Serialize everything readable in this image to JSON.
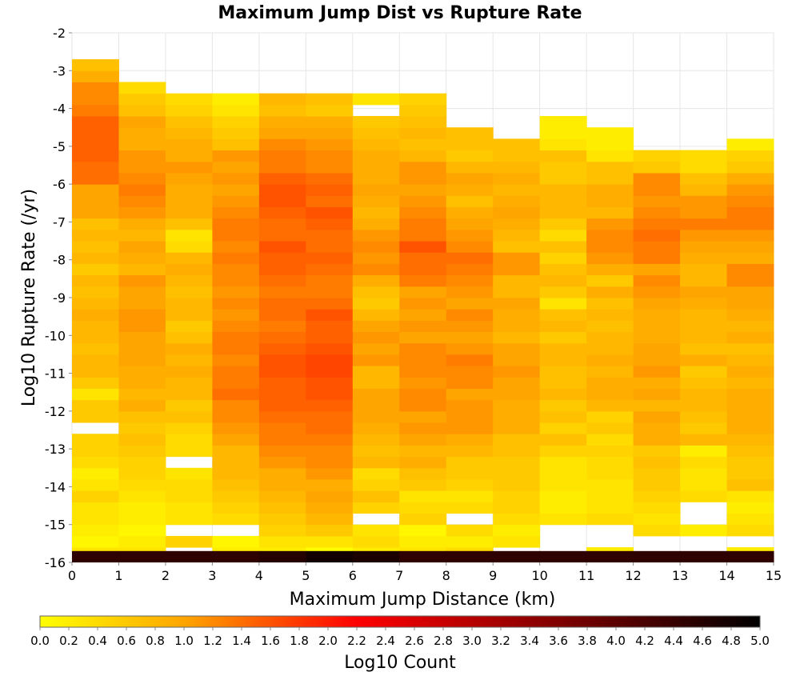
{
  "chart_data": {
    "type": "heatmap",
    "title": "Maximum Jump Dist vs Rupture Rate",
    "xlabel": "Maximum Jump Distance (km)",
    "ylabel": "Log10 Rupture Rate (/yr)",
    "xlim": [
      0,
      15
    ],
    "ylim": [
      -16,
      -2
    ],
    "x_ticks": [
      "0",
      "1",
      "2",
      "3",
      "4",
      "5",
      "6",
      "7",
      "8",
      "9",
      "10",
      "11",
      "12",
      "13",
      "14",
      "15"
    ],
    "y_ticks": [
      "-2",
      "-3",
      "-4",
      "-5",
      "-6",
      "-7",
      "-8",
      "-9",
      "-10",
      "-11",
      "-12",
      "-13",
      "-14",
      "-15",
      "-16"
    ],
    "x_bin_width": 1,
    "y_bin_width": 0.3,
    "y_bin_start": -15.9,
    "colorbar": {
      "label": "Log10 Count",
      "range": [
        0,
        5
      ],
      "ticks": [
        "0.0",
        "0.2",
        "0.4",
        "0.6",
        "0.8",
        "1.0",
        "1.2",
        "1.4",
        "1.6",
        "1.8",
        "2.0",
        "2.2",
        "2.4",
        "2.6",
        "2.8",
        "3.0",
        "3.2",
        "3.4",
        "3.6",
        "3.8",
        "4.0",
        "4.2",
        "4.4",
        "4.6",
        "4.8",
        "5.0"
      ],
      "colors": [
        "#ffff00",
        "#ffa500",
        "#ff0000",
        "#000000"
      ]
    },
    "grid": true,
    "columns": [
      [
        0.3,
        0.1,
        0.2,
        0.3,
        0.3,
        0.5,
        0.3,
        0.2,
        0.4,
        0.5,
        0.5,
        null,
        0.6,
        0.6,
        0.3,
        0.6,
        0.8,
        0.8,
        0.7,
        0.8,
        0.8,
        0.9,
        0.8,
        0.7,
        0.8,
        0.6,
        0.8,
        0.7,
        0.8,
        0.7,
        1.0,
        1.0,
        1.0,
        1.4,
        1.4,
        1.5,
        1.5,
        1.5,
        1.5,
        1.3,
        1.2,
        1.2,
        0.9,
        0.7
      ],
      [
        0.3,
        0.2,
        0.1,
        0.2,
        0.2,
        0.3,
        0.4,
        0.5,
        0.5,
        0.6,
        0.7,
        0.6,
        0.7,
        0.9,
        0.8,
        0.9,
        0.9,
        1.0,
        1.0,
        1.0,
        1.1,
        1.1,
        1.0,
        1.0,
        1.1,
        0.8,
        0.9,
        1.0,
        0.8,
        0.9,
        1.1,
        1.2,
        1.3,
        1.2,
        1.1,
        1.1,
        0.9,
        0.9,
        1.0,
        0.7,
        0.6,
        0.4
      ],
      [
        null,
        0.5,
        null,
        0.3,
        0.3,
        0.4,
        0.4,
        0.3,
        null,
        0.4,
        0.4,
        0.5,
        0.7,
        0.6,
        0.8,
        0.8,
        0.9,
        0.8,
        0.9,
        0.7,
        0.6,
        0.8,
        0.8,
        0.7,
        0.8,
        0.9,
        0.8,
        0.4,
        0.3,
        0.7,
        0.9,
        0.9,
        0.9,
        1.0,
        1.1,
        0.9,
        0.9,
        0.8,
        0.7,
        0.5,
        0.4
      ],
      [
        0.2,
        0.1,
        null,
        0.4,
        0.5,
        0.6,
        0.7,
        0.8,
        0.8,
        0.8,
        1.0,
        1.1,
        1.2,
        1.2,
        1.4,
        1.3,
        1.3,
        1.2,
        1.3,
        1.3,
        1.2,
        1.1,
        1.2,
        1.1,
        1.2,
        1.2,
        1.3,
        1.2,
        1.3,
        1.3,
        1.2,
        1.1,
        1.0,
        1.1,
        1.0,
        1.1,
        0.7,
        0.6,
        0.5,
        0.3,
        0.2
      ],
      [
        0.2,
        0.3,
        0.5,
        0.6,
        0.7,
        0.8,
        0.9,
        0.9,
        1.1,
        1.2,
        1.3,
        1.3,
        1.4,
        1.5,
        1.5,
        1.5,
        1.6,
        1.6,
        1.5,
        1.4,
        1.3,
        1.4,
        1.4,
        1.3,
        1.4,
        1.5,
        1.5,
        1.6,
        1.4,
        1.4,
        1.5,
        1.6,
        1.6,
        1.5,
        1.3,
        1.3,
        1.2,
        1.0,
        0.9,
        0.7,
        0.8
      ],
      [
        0.0,
        0.3,
        0.6,
        0.8,
        0.9,
        1.0,
        0.9,
        1.1,
        1.2,
        1.2,
        1.3,
        1.4,
        1.4,
        1.5,
        1.6,
        1.6,
        1.7,
        1.7,
        1.6,
        1.5,
        1.5,
        1.6,
        1.4,
        1.3,
        1.3,
        1.4,
        1.5,
        1.4,
        1.4,
        1.5,
        1.6,
        1.4,
        1.5,
        1.4,
        1.2,
        1.2,
        1.1,
        1.0,
        0.9,
        0.6,
        0.7
      ],
      [
        0.2,
        0.4,
        0.3,
        null,
        0.5,
        0.7,
        0.5,
        0.4,
        0.8,
        0.7,
        0.8,
        0.9,
        1.0,
        1.0,
        1.0,
        0.8,
        0.8,
        1.1,
        1.0,
        1.1,
        1.0,
        0.8,
        0.6,
        0.7,
        0.9,
        1.2,
        1.1,
        1.2,
        1.1,
        0.9,
        0.8,
        0.9,
        1.0,
        0.9,
        0.9,
        0.9,
        0.8,
        0.7,
        0.6,
        null,
        0.3
      ],
      [
        0.3,
        0.2,
        0.1,
        0.5,
        0.4,
        0.3,
        0.6,
        0.7,
        0.9,
        0.8,
        1.0,
        1.1,
        1.0,
        1.2,
        1.2,
        1.1,
        1.2,
        1.2,
        1.2,
        1.0,
        1.1,
        1.0,
        1.1,
        1.0,
        1.3,
        1.4,
        1.4,
        1.6,
        1.3,
        1.3,
        1.2,
        1.1,
        1.0,
        1.1,
        1.1,
        0.8,
        0.7,
        0.8,
        0.7,
        0.6,
        0.5
      ],
      [
        0.4,
        0.2,
        0.4,
        null,
        0.4,
        0.3,
        0.5,
        0.6,
        0.6,
        0.8,
        0.9,
        1.1,
        1.1,
        1.1,
        1.0,
        1.2,
        1.2,
        1.3,
        1.1,
        1.0,
        1.1,
        1.2,
        1.0,
        1.1,
        1.2,
        1.3,
        1.4,
        1.2,
        1.1,
        1.0,
        0.9,
        0.7,
        0.9,
        1.0,
        0.8,
        0.6,
        0.7,
        0.7
      ],
      [
        null,
        0.3,
        0.2,
        0.4,
        0.5,
        0.5,
        0.6,
        0.6,
        0.6,
        0.7,
        0.7,
        0.9,
        0.9,
        0.9,
        1.0,
        1.0,
        1.1,
        1.0,
        1.0,
        0.8,
        0.9,
        0.9,
        1.0,
        0.8,
        0.8,
        1.1,
        1.1,
        0.7,
        0.8,
        0.9,
        1.0,
        0.9,
        0.8,
        0.9,
        0.8,
        0.7,
        0.7
      ],
      [
        null,
        null,
        null,
        0.3,
        0.2,
        0.2,
        0.3,
        0.3,
        0.3,
        0.5,
        0.7,
        0.5,
        0.7,
        0.6,
        0.8,
        0.7,
        0.7,
        0.8,
        0.8,
        0.6,
        0.8,
        0.7,
        0.3,
        0.6,
        0.8,
        0.7,
        0.5,
        0.7,
        0.4,
        0.6,
        0.8,
        0.8,
        0.8,
        0.6,
        0.6,
        0.7,
        0.3,
        0.2,
        0.2
      ],
      [
        0.2,
        null,
        null,
        0.4,
        0.3,
        0.3,
        0.3,
        0.4,
        0.4,
        0.5,
        0.4,
        0.6,
        0.5,
        0.8,
        0.9,
        0.9,
        0.8,
        0.9,
        0.8,
        0.8,
        0.7,
        0.8,
        0.7,
        0.9,
        0.6,
        0.9,
        1.1,
        1.2,
        1.2,
        1.1,
        0.8,
        0.9,
        0.9,
        0.7,
        0.7,
        0.3,
        0.2,
        0.2
      ],
      [
        null,
        null,
        0.4,
        0.3,
        0.4,
        0.5,
        0.6,
        0.6,
        0.7,
        0.6,
        0.9,
        0.9,
        1.0,
        0.8,
        1.0,
        0.9,
        1.1,
        1.0,
        1.0,
        0.9,
        0.9,
        0.9,
        1.0,
        1.1,
        1.2,
        1.0,
        1.3,
        1.3,
        1.4,
        1.3,
        1.2,
        1.1,
        1.2,
        1.2,
        0.6,
        0.5
      ],
      [
        null,
        null,
        0.2,
        null,
        null,
        0.4,
        0.3,
        0.3,
        0.4,
        0.2,
        0.8,
        0.6,
        0.7,
        0.8,
        0.8,
        0.7,
        0.6,
        0.9,
        0.7,
        0.8,
        0.8,
        0.8,
        0.9,
        1.0,
        0.8,
        0.8,
        0.9,
        1.0,
        1.1,
        1.3,
        1.1,
        1.1,
        0.8,
        0.7,
        0.4,
        0.4
      ],
      [
        0.2,
        null,
        0.4,
        0.3,
        0.2,
        0.3,
        0.7,
        0.6,
        0.6,
        0.7,
        0.8,
        0.9,
        0.9,
        0.9,
        0.9,
        0.8,
        0.9,
        0.8,
        0.7,
        0.9,
        0.8,
        0.9,
        1.0,
        1.0,
        1.2,
        1.2,
        0.9,
        1.0,
        1.1,
        1.3,
        1.3,
        1.2,
        1.1,
        0.9,
        0.6,
        0.5,
        0.2
      ]
    ],
    "bottom_row": [
      4.5,
      4.5,
      4.5,
      4.5,
      4.6,
      4.8,
      4.7,
      4.5,
      4.5,
      4.5,
      4.5,
      4.5,
      4.5,
      4.5,
      4.5
    ]
  }
}
